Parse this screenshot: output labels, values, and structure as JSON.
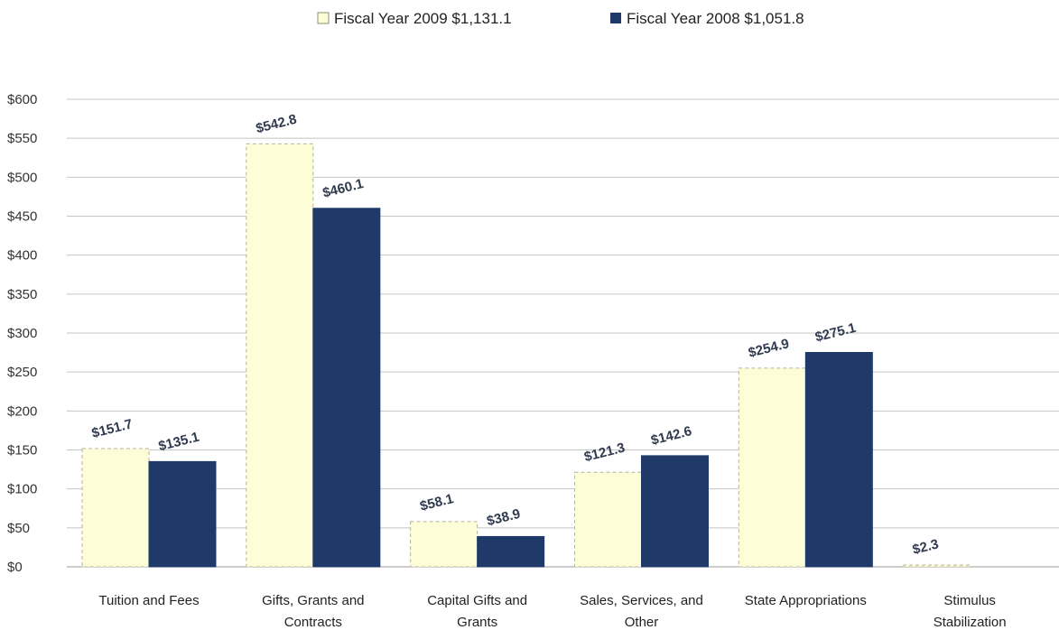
{
  "chart_data": {
    "type": "bar",
    "title": "",
    "xlabel": "",
    "ylabel": "",
    "ylim": [
      0,
      600
    ],
    "yticks": [
      0,
      50,
      100,
      150,
      200,
      250,
      300,
      350,
      400,
      450,
      500,
      550,
      600
    ],
    "ytick_labels": [
      "$0",
      "$50",
      "$100",
      "$150",
      "$200",
      "$250",
      "$300",
      "$350",
      "$400",
      "$450",
      "$500",
      "$550",
      "$600"
    ],
    "grid": true,
    "legend_position": "top-center",
    "categories": [
      [
        "Tuition and Fees"
      ],
      [
        "Gifts, Grants and",
        "Contracts"
      ],
      [
        "Capital Gifts and",
        "Grants"
      ],
      [
        "Sales, Services, and",
        "Other"
      ],
      [
        "State Appropriations"
      ],
      [
        "Stimulus",
        "Stabilization"
      ]
    ],
    "series": [
      {
        "name": "Fiscal Year 2009",
        "legend_label": "Fiscal Year 2009 $1,131.1",
        "color": "#fdfdd8",
        "stroke": "#b5b59a",
        "values": [
          151.7,
          542.8,
          58.1,
          121.3,
          254.9,
          2.3
        ],
        "labels": [
          "$151.7",
          "$542.8",
          "$58.1",
          "$121.3",
          "$254.9",
          "$2.3"
        ]
      },
      {
        "name": "Fiscal Year 2008",
        "legend_label": "Fiscal Year 2008 $1,051.8",
        "color": "#1f3a68",
        "stroke": "#1f3a68",
        "values": [
          135.1,
          460.1,
          38.9,
          142.6,
          275.1,
          null
        ],
        "labels": [
          "$135.1",
          "$460.1",
          "$38.9",
          "$142.6",
          "$275.1",
          ""
        ]
      }
    ]
  }
}
